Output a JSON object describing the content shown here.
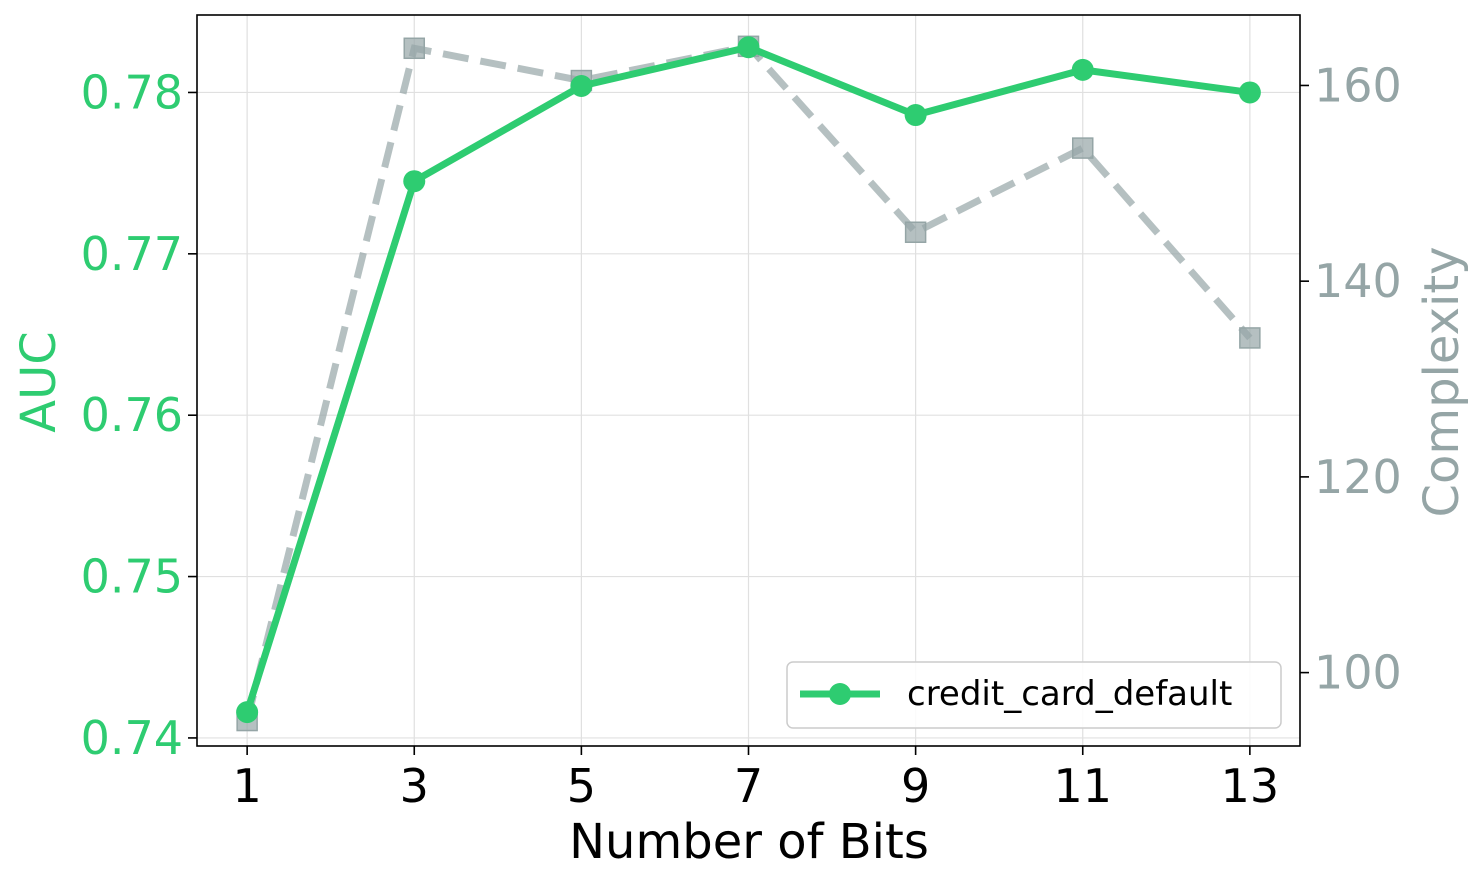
{
  "chart_data": {
    "type": "line",
    "title": "",
    "xlabel": "Number of Bits",
    "ylabel_left": "AUC",
    "ylabel_right": "Complexity",
    "x": [
      1,
      3,
      5,
      7,
      9,
      11,
      13
    ],
    "x_ticks": [
      "1",
      "3",
      "5",
      "7",
      "9",
      "11",
      "13"
    ],
    "y_left_ticks": [
      "0.74",
      "0.75",
      "0.76",
      "0.77",
      "0.78"
    ],
    "y_right_ticks": [
      "100",
      "120",
      "140",
      "160"
    ],
    "xlim": [
      0.4,
      13.6
    ],
    "ylim_left": [
      0.7395,
      0.7848
    ],
    "ylim_right": [
      92.5,
      167.2
    ],
    "grid": true,
    "legend_position": "bottom-right",
    "series": [
      {
        "name": "credit_card_default",
        "axis": "left",
        "style": "solid",
        "marker": "circle",
        "color": "#2ecc71",
        "values": [
          0.7416,
          0.7745,
          0.7804,
          0.7828,
          0.7786,
          0.7814,
          0.78
        ]
      },
      {
        "axis": "right",
        "style": "dashed",
        "marker": "square",
        "color": "#95a5a6",
        "values": [
          95.1,
          163.8,
          160.5,
          164.0,
          145.0,
          153.6,
          134.2
        ]
      }
    ],
    "colors": {
      "left_axis": "#2ecc71",
      "right_axis": "#95a5a6",
      "grid": "#e0e0e0",
      "frame": "#000000"
    }
  }
}
